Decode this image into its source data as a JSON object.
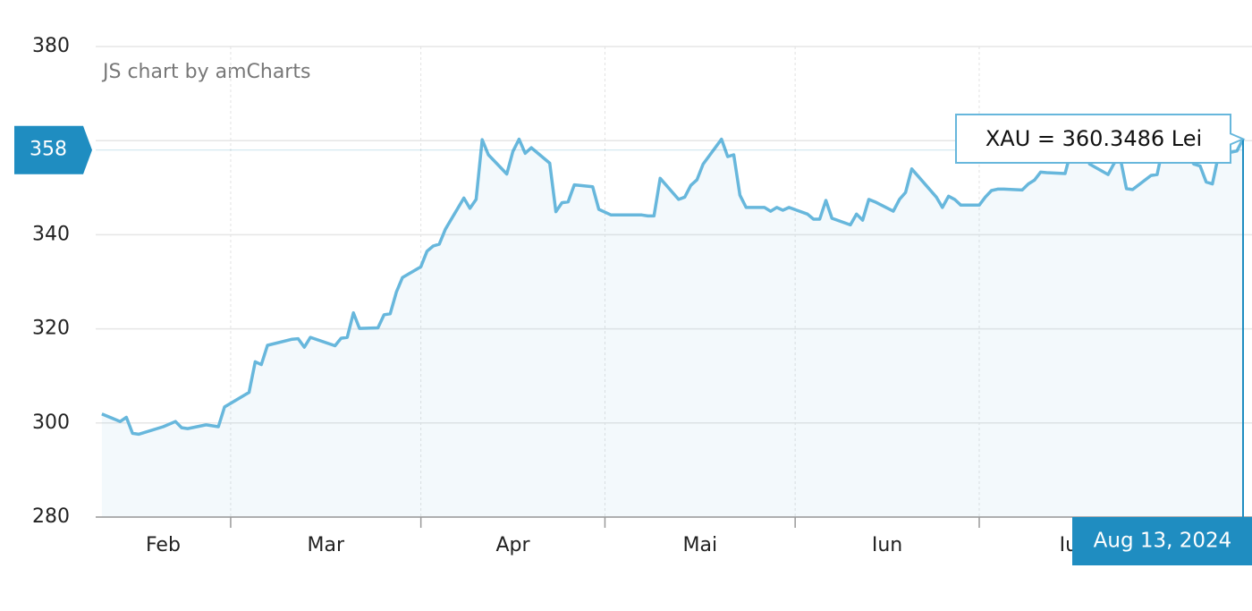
{
  "chart_data": {
    "type": "line",
    "credit": "JS chart by amCharts",
    "series": [
      {
        "color": "#67b7dc",
        "x": [
          "2024-02-09",
          "2024-02-12",
          "2024-02-13",
          "2024-02-14",
          "2024-02-15",
          "2024-02-19",
          "2024-02-21",
          "2024-02-22",
          "2024-02-23",
          "2024-02-26",
          "2024-02-28",
          "2024-02-29",
          "2024-03-04",
          "2024-03-05",
          "2024-03-06",
          "2024-03-07",
          "2024-03-11",
          "2024-03-12",
          "2024-03-13",
          "2024-03-14",
          "2024-03-18",
          "2024-03-19",
          "2024-03-20",
          "2024-03-21",
          "2024-03-22",
          "2024-03-25",
          "2024-03-26",
          "2024-03-27",
          "2024-03-28",
          "2024-03-29",
          "2024-04-01",
          "2024-04-02",
          "2024-04-03",
          "2024-04-04",
          "2024-04-05",
          "2024-04-08",
          "2024-04-09",
          "2024-04-10",
          "2024-04-11",
          "2024-04-12",
          "2024-04-15",
          "2024-04-16",
          "2024-04-17",
          "2024-04-18",
          "2024-04-19",
          "2024-04-22",
          "2024-04-23",
          "2024-04-24",
          "2024-04-25",
          "2024-04-26",
          "2024-04-29",
          "2024-04-30",
          "2024-05-01",
          "2024-05-02",
          "2024-05-03",
          "2024-05-06",
          "2024-05-07",
          "2024-05-08",
          "2024-05-09",
          "2024-05-10",
          "2024-05-13",
          "2024-05-14",
          "2024-05-15",
          "2024-05-16",
          "2024-05-17",
          "2024-05-20",
          "2024-05-21",
          "2024-05-22",
          "2024-05-23",
          "2024-05-24",
          "2024-05-27",
          "2024-05-28",
          "2024-05-29",
          "2024-05-30",
          "2024-05-31",
          "2024-06-03",
          "2024-06-04",
          "2024-06-05",
          "2024-06-06",
          "2024-06-07",
          "2024-06-10",
          "2024-06-11",
          "2024-06-12",
          "2024-06-13",
          "2024-06-14",
          "2024-06-17",
          "2024-06-18",
          "2024-06-19",
          "2024-06-20",
          "2024-06-21",
          "2024-06-24",
          "2024-06-25",
          "2024-06-26",
          "2024-06-27",
          "2024-06-28",
          "2024-07-01",
          "2024-07-02",
          "2024-07-03",
          "2024-07-04",
          "2024-07-05",
          "2024-07-08",
          "2024-07-09",
          "2024-07-10",
          "2024-07-11",
          "2024-07-12",
          "2024-07-15",
          "2024-07-16",
          "2024-07-17",
          "2024-07-18",
          "2024-07-19",
          "2024-07-22",
          "2024-07-23",
          "2024-07-24",
          "2024-07-25",
          "2024-07-26",
          "2024-07-29",
          "2024-07-30",
          "2024-07-31",
          "2024-08-01",
          "2024-08-02",
          "2024-08-05",
          "2024-08-06",
          "2024-08-07",
          "2024-08-08",
          "2024-08-09",
          "2024-08-12",
          "2024-08-13"
        ],
        "values": [
          301.9,
          300.3,
          301.2,
          297.8,
          297.6,
          299.2,
          300.3,
          299.0,
          298.8,
          299.6,
          299.2,
          303.4,
          306.5,
          313.0,
          312.4,
          316.5,
          317.8,
          317.9,
          316.1,
          318.2,
          316.4,
          318.0,
          318.2,
          323.4,
          320.1,
          320.2,
          323.0,
          323.2,
          327.8,
          330.9,
          333.2,
          336.5,
          337.6,
          338.0,
          341.2,
          347.8,
          345.6,
          347.5,
          360.2,
          357.0,
          352.9,
          357.7,
          360.3,
          357.3,
          358.5,
          355.2,
          344.9,
          346.8,
          347.0,
          350.6,
          350.2,
          345.4,
          344.8,
          344.2,
          344.2,
          344.2,
          344.2,
          344.0,
          344.0,
          352.0,
          347.5,
          348.0,
          350.5,
          351.7,
          355.0,
          360.3,
          356.6,
          357.0,
          348.4,
          345.8,
          345.8,
          345.0,
          345.8,
          345.2,
          345.8,
          344.4,
          343.3,
          343.3,
          347.3,
          343.5,
          342.1,
          344.4,
          343.1,
          347.5,
          347.0,
          345.0,
          347.5,
          349.0,
          354.0,
          352.5,
          348.0,
          345.8,
          348.2,
          347.5,
          346.3,
          346.3,
          348.0,
          349.4,
          349.7,
          349.7,
          349.5,
          350.8,
          351.6,
          353.3,
          353.2,
          353.0,
          358.0,
          361.7,
          358.0,
          355.0,
          352.8,
          355.2,
          356.2,
          349.8,
          349.6,
          352.6,
          352.8,
          359.0,
          364.2,
          360.0,
          355.0,
          354.6,
          351.2,
          350.8,
          357.0,
          357.8,
          360.3486
        ]
      }
    ],
    "ylim": [
      280,
      380
    ],
    "yticks": [
      280,
      300,
      320,
      340,
      360,
      380
    ],
    "xlim": [
      "2024-02-08",
      "2024-08-13"
    ],
    "xticks": [
      {
        "value": "2024-02-01",
        "label": "Feb"
      },
      {
        "value": "2024-03-01",
        "label": "Mar"
      },
      {
        "value": "2024-04-01",
        "label": "Apr"
      },
      {
        "value": "2024-05-01",
        "label": "Mai"
      },
      {
        "value": "2024-06-01",
        "label": "Iun"
      },
      {
        "value": "2024-07-01",
        "label": "Iul"
      }
    ],
    "grid": true,
    "fill_area": true,
    "cursor": {
      "y": 358,
      "x_label": "Aug 13, 2024",
      "balloon": "XAU = 360.3486 Lei"
    }
  }
}
